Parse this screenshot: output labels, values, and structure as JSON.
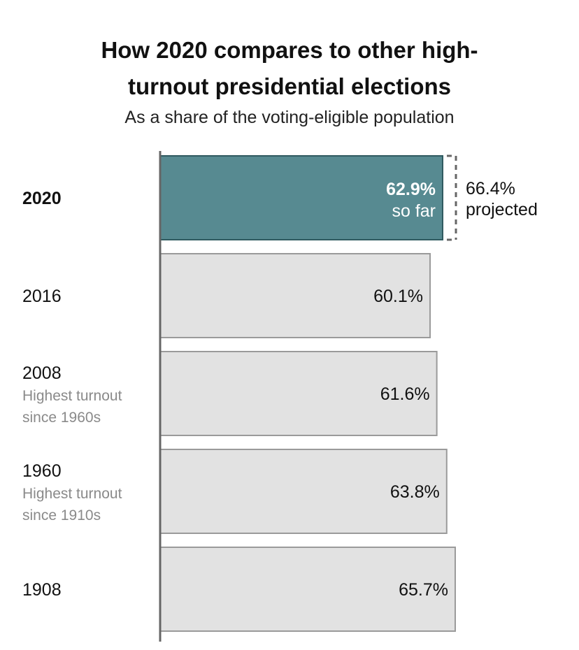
{
  "title_line1": "How 2020 compares to other high-",
  "title_line2": "turnout presidential elections",
  "subtitle": "As a share of the voting-eligible population",
  "colors": {
    "highlight_bar": "#578a91",
    "highlight_stroke": "#2f5a60",
    "bar": "#e2e2e2",
    "bar_stroke": "#9a9a9a",
    "axis": "#666666",
    "projection_line": "#666666"
  },
  "chart_data": {
    "type": "bar",
    "orientation": "horizontal",
    "xlim": [
      0,
      70
    ],
    "categories": [
      "2020",
      "2016",
      "2008",
      "1960",
      "1908"
    ],
    "notes": [
      "",
      "",
      "Highest turnout since 1960s",
      "Highest turnout since 1910s",
      ""
    ],
    "note_lines": [
      [],
      [],
      [
        "Highest turnout",
        "since 1960s"
      ],
      [
        "Highest turnout",
        "since 1910s"
      ],
      []
    ],
    "values": [
      62.9,
      60.1,
      61.6,
      63.8,
      65.7
    ],
    "value_labels": [
      "62.9%",
      "60.1%",
      "61.6%",
      "63.8%",
      "65.7%"
    ],
    "highlight_index": 0,
    "highlight_sublabel": "so far",
    "projection": {
      "value": 66.4,
      "label_value": "66.4%",
      "label_text": "projected"
    }
  }
}
